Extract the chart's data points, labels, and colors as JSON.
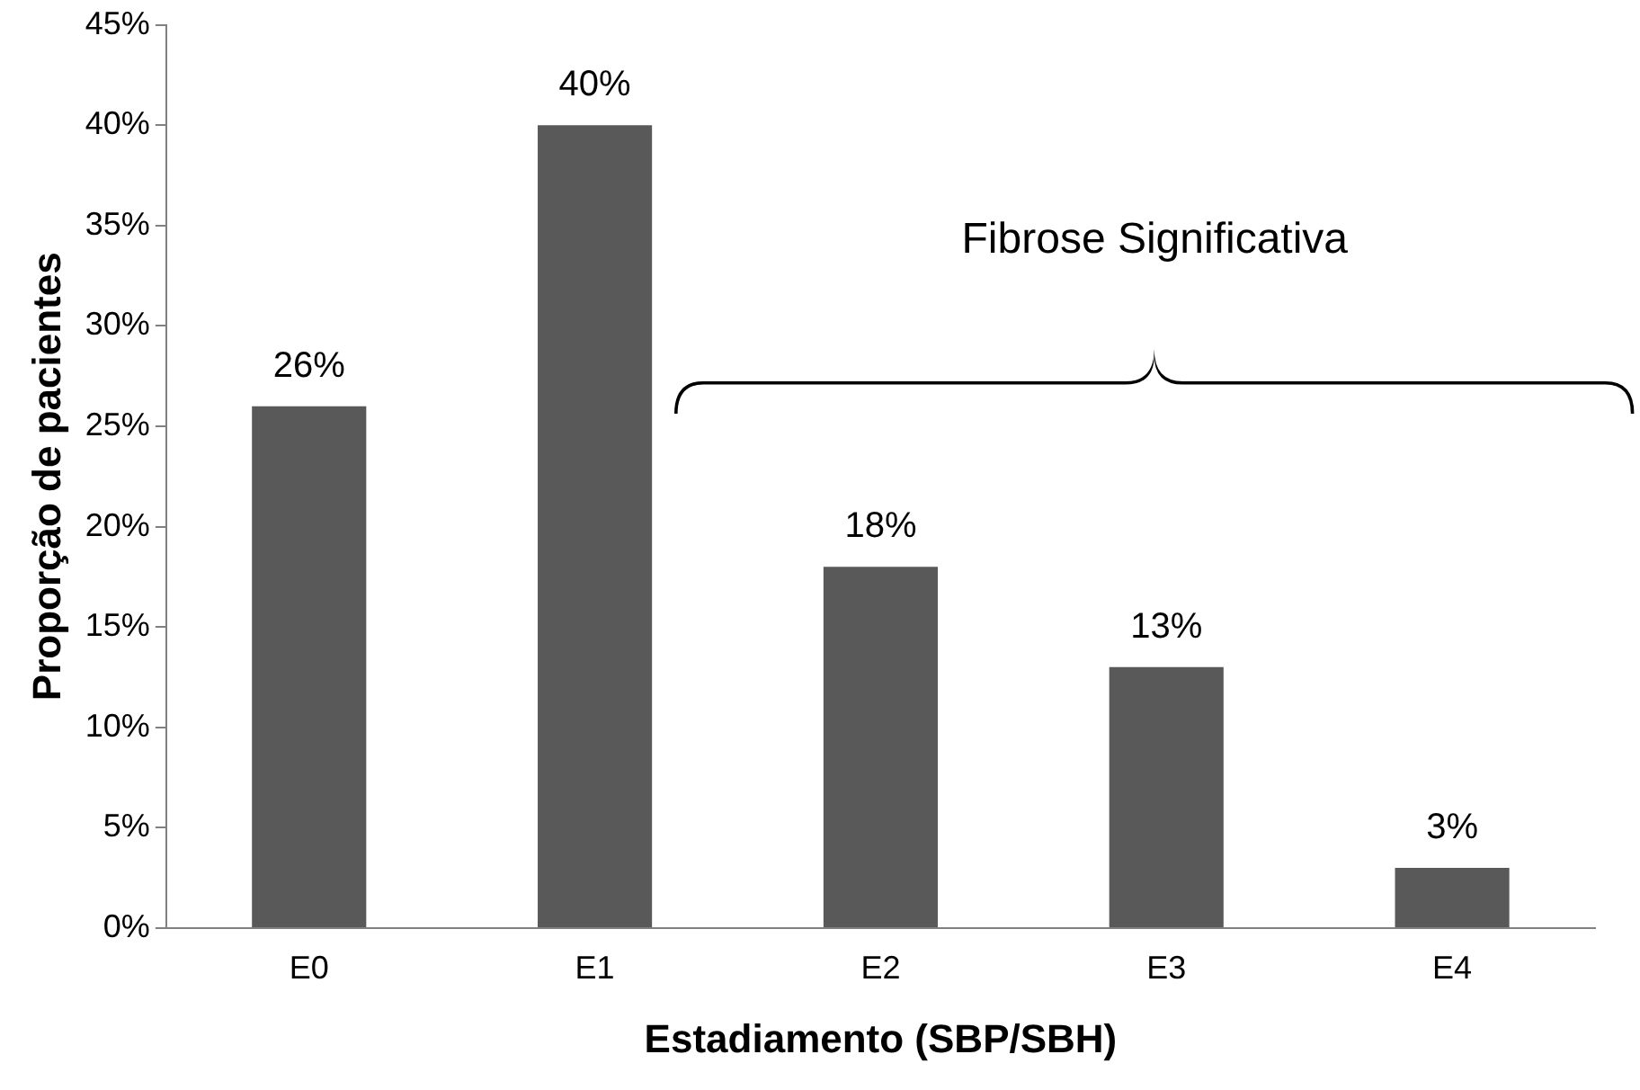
{
  "chart_data": {
    "type": "bar",
    "xlabel": "Estadiamento (SBP/SBH)",
    "ylabel": "Proporção de pacientes",
    "categories": [
      "E0",
      "E1",
      "E2",
      "E3",
      "E4"
    ],
    "values": [
      26,
      40,
      18,
      13,
      3
    ],
    "value_labels": [
      "26%",
      "40%",
      "18%",
      "13%",
      "3%"
    ],
    "color": "#595959",
    "ylim": [
      0,
      45
    ],
    "yticks": [
      {
        "value": 0,
        "label": "0%"
      },
      {
        "value": 5,
        "label": "5%"
      },
      {
        "value": 10,
        "label": "10%"
      },
      {
        "value": 15,
        "label": "15%"
      },
      {
        "value": 20,
        "label": "20%"
      },
      {
        "value": 25,
        "label": "25%"
      },
      {
        "value": 30,
        "label": "30%"
      },
      {
        "value": 35,
        "label": "35%"
      },
      {
        "value": 40,
        "label": "40%"
      },
      {
        "value": 45,
        "label": "45%"
      }
    ],
    "grid": false,
    "legend": false,
    "annotations": [
      "Fibrose Significativa"
    ]
  }
}
